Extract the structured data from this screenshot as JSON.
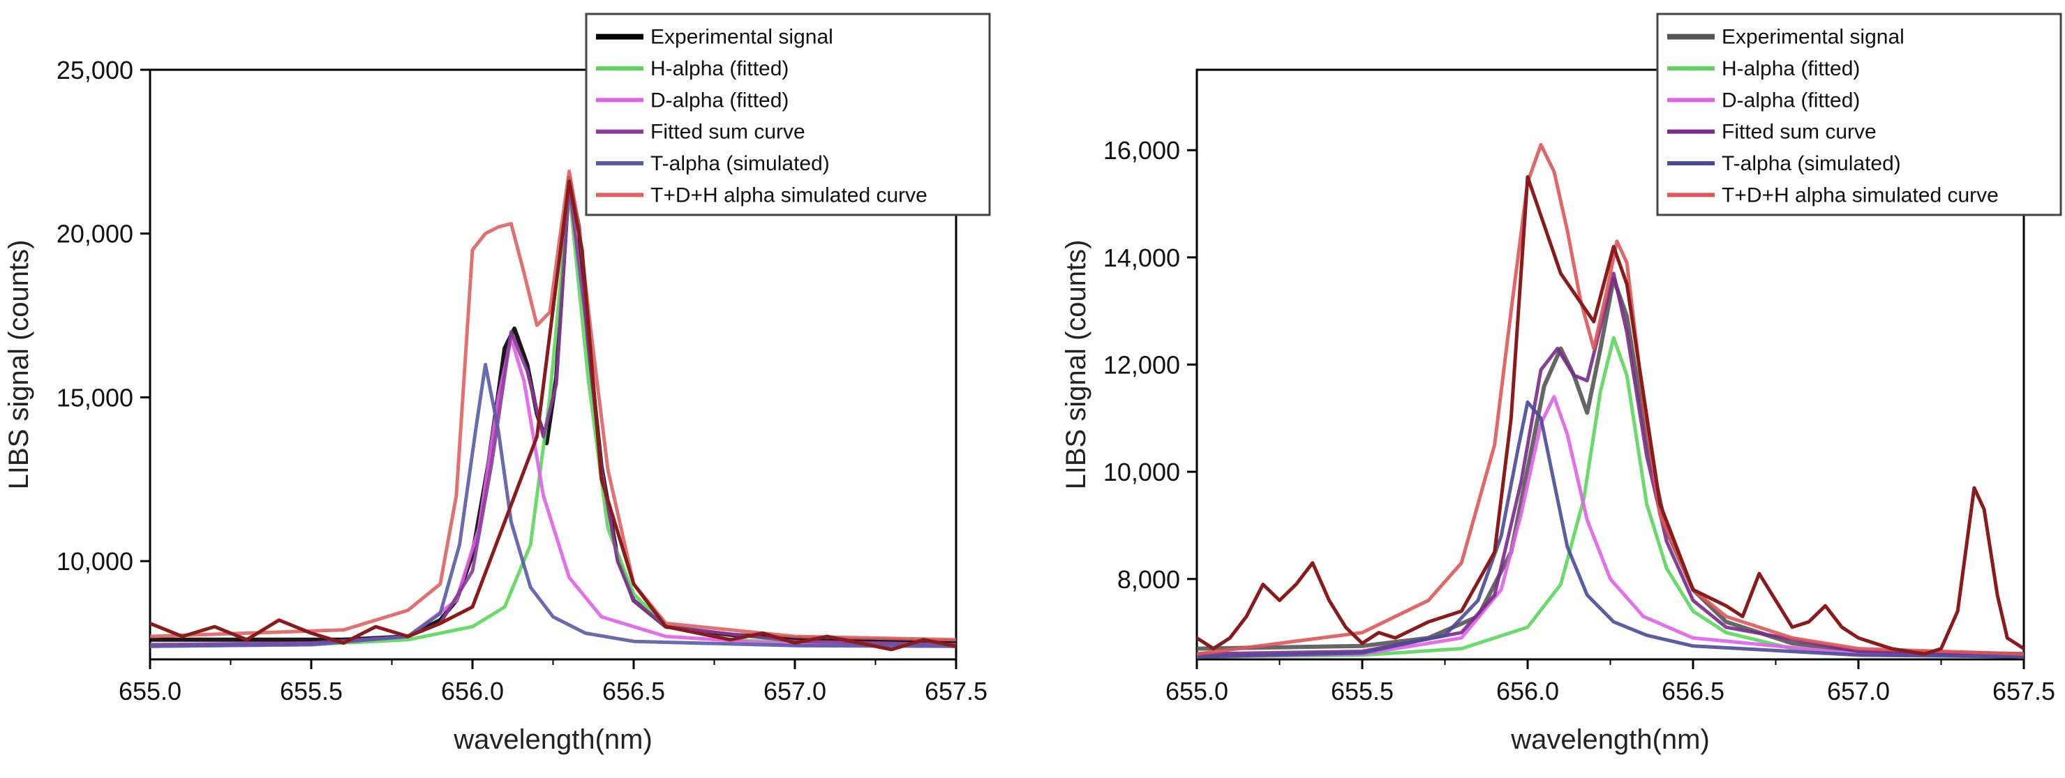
{
  "chart_data": [
    {
      "type": "line",
      "xlabel": "wavelength(nm)",
      "ylabel": "LIBS signal (counts)",
      "xlim": [
        655.0,
        657.5
      ],
      "ylim": [
        7000,
        25000
      ],
      "xticks": [
        655.0,
        655.5,
        656.0,
        656.5,
        657.0,
        657.5
      ],
      "xtick_labels": [
        "655.0",
        "655.5",
        "656.0",
        "656.5",
        "657.0",
        "657.5"
      ],
      "yticks": [
        10000,
        15000,
        20000,
        25000
      ],
      "ytick_labels": [
        "10,000",
        "15,000",
        "20,000",
        "25,000"
      ],
      "grid": false,
      "legend_position": "top-right",
      "series": [
        {
          "name": "Experimental signal",
          "color": "#000000",
          "x": [
            655.0,
            655.2,
            655.4,
            655.6,
            655.8,
            655.9,
            655.95,
            656.0,
            656.05,
            656.1,
            656.13,
            656.17,
            656.2,
            656.23,
            656.26,
            656.3,
            656.33,
            656.36,
            656.4,
            656.45,
            656.5,
            656.6,
            656.8,
            657.0,
            657.2,
            657.5
          ],
          "y": [
            7600,
            7600,
            7600,
            7600,
            7700,
            8200,
            8800,
            10200,
            13000,
            16500,
            17100,
            16000,
            14500,
            13600,
            15600,
            21700,
            20200,
            16600,
            12900,
            10100,
            8800,
            8000,
            7750,
            7650,
            7600,
            7550
          ]
        },
        {
          "name": "H-alpha (fitted)",
          "color": "#5ad65a",
          "x": [
            655.0,
            655.5,
            655.8,
            656.0,
            656.1,
            656.18,
            656.24,
            656.3,
            656.36,
            656.42,
            656.5,
            656.6,
            656.8,
            657.0,
            657.5
          ],
          "y": [
            7400,
            7450,
            7600,
            8000,
            8600,
            10500,
            15000,
            21300,
            15500,
            11000,
            9000,
            8000,
            7600,
            7500,
            7450
          ]
        },
        {
          "name": "D-alpha (fitted)",
          "color": "#e060e8",
          "x": [
            655.0,
            655.5,
            655.8,
            655.95,
            656.02,
            656.08,
            656.12,
            656.16,
            656.22,
            656.3,
            656.4,
            656.6,
            657.0,
            657.5
          ],
          "y": [
            7400,
            7450,
            7700,
            8800,
            11000,
            15000,
            16800,
            15500,
            12000,
            9500,
            8300,
            7700,
            7450,
            7400
          ]
        },
        {
          "name": "Fitted sum curve",
          "color": "#8a3a9a",
          "x": [
            655.0,
            655.5,
            655.8,
            655.9,
            656.0,
            656.06,
            656.12,
            656.17,
            656.22,
            656.26,
            656.3,
            656.35,
            656.4,
            656.45,
            656.5,
            656.6,
            657.0,
            657.5
          ],
          "y": [
            7450,
            7500,
            7700,
            8100,
            9700,
            13000,
            17000,
            15800,
            13800,
            15400,
            21500,
            17500,
            12800,
            10000,
            8800,
            8000,
            7550,
            7450
          ]
        },
        {
          "name": "T-alpha (simulated)",
          "color": "#5a5aa8",
          "x": [
            655.0,
            655.5,
            655.8,
            655.9,
            655.96,
            656.01,
            656.04,
            656.08,
            656.12,
            656.18,
            656.25,
            656.35,
            656.5,
            657.0,
            657.5
          ],
          "y": [
            7400,
            7450,
            7700,
            8400,
            10500,
            14000,
            16000,
            14000,
            11200,
            9200,
            8300,
            7800,
            7550,
            7420,
            7400
          ]
        },
        {
          "name": "T+D+H alpha simulated curve",
          "color": "#e06060",
          "x": [
            655.0,
            655.3,
            655.6,
            655.8,
            655.9,
            655.95,
            656.0,
            656.04,
            656.08,
            656.12,
            656.16,
            656.2,
            656.24,
            656.27,
            656.3,
            656.33,
            656.37,
            656.42,
            656.5,
            656.6,
            657.0,
            657.5
          ],
          "y": [
            7700,
            7800,
            7900,
            8500,
            9300,
            12000,
            19500,
            20000,
            20200,
            20300,
            18800,
            17200,
            17600,
            19800,
            21900,
            20200,
            16800,
            12800,
            9300,
            8100,
            7700,
            7600
          ]
        },
        {
          "name": "",
          "color": "#8b1a1a",
          "x": [
            655.0,
            655.1,
            655.2,
            655.3,
            655.4,
            655.5,
            655.6,
            655.7,
            655.8,
            655.9,
            656.0,
            656.2,
            656.3,
            656.34,
            656.4,
            656.5,
            656.6,
            656.7,
            656.8,
            656.9,
            657.0,
            657.1,
            657.2,
            657.3,
            657.4,
            657.5
          ],
          "y": [
            8100,
            7700,
            8000,
            7600,
            8200,
            7800,
            7500,
            8000,
            7700,
            8100,
            8600,
            13800,
            21600,
            19500,
            12500,
            9300,
            8000,
            7800,
            7600,
            7800,
            7500,
            7700,
            7500,
            7300,
            7600,
            7400
          ]
        }
      ]
    },
    {
      "type": "line",
      "xlabel": "wavelength(nm)",
      "ylabel": "LIBS signal (counts)",
      "xlim": [
        655.0,
        657.5
      ],
      "ylim": [
        6500,
        17500
      ],
      "xticks": [
        655.0,
        655.5,
        656.0,
        656.5,
        657.0,
        657.5
      ],
      "xtick_labels": [
        "655.0",
        "655.5",
        "656.0",
        "656.5",
        "657.0",
        "657.5"
      ],
      "yticks": [
        8000,
        10000,
        12000,
        14000,
        16000
      ],
      "ytick_labels": [
        "8,000",
        "10,000",
        "12,000",
        "14,000",
        "16,000"
      ],
      "grid": false,
      "legend_position": "top-right",
      "series": [
        {
          "name": "Experimental signal",
          "color": "#555555",
          "x": [
            655.0,
            655.5,
            655.7,
            655.85,
            655.95,
            656.05,
            656.1,
            656.14,
            656.18,
            656.22,
            656.26,
            656.3,
            656.36,
            656.42,
            656.5,
            656.6,
            656.8,
            657.0,
            657.5
          ],
          "y": [
            6700,
            6750,
            6900,
            7300,
            8500,
            11600,
            12300,
            11800,
            11100,
            12300,
            13600,
            12900,
            10600,
            8900,
            7800,
            7200,
            6800,
            6650,
            6600
          ]
        },
        {
          "name": "H-alpha (fitted)",
          "color": "#5ad65a",
          "x": [
            655.0,
            655.5,
            655.8,
            656.0,
            656.1,
            656.17,
            656.22,
            656.26,
            656.3,
            656.36,
            656.42,
            656.5,
            656.6,
            656.8,
            657.0,
            657.5
          ],
          "y": [
            6550,
            6580,
            6700,
            7100,
            7900,
            9500,
            11500,
            12500,
            11800,
            9400,
            8200,
            7400,
            7000,
            6700,
            6600,
            6550
          ]
        },
        {
          "name": "D-alpha (fitted)",
          "color": "#e060e8",
          "x": [
            655.0,
            655.5,
            655.8,
            655.92,
            655.98,
            656.04,
            656.08,
            656.12,
            656.18,
            656.25,
            656.35,
            656.5,
            657.0,
            657.5
          ],
          "y": [
            6550,
            6600,
            6900,
            7800,
            9200,
            10900,
            11400,
            10700,
            9100,
            8000,
            7300,
            6900,
            6600,
            6550
          ]
        },
        {
          "name": "Fitted sum curve",
          "color": "#7a2a8a",
          "x": [
            655.0,
            655.5,
            655.8,
            655.9,
            655.98,
            656.04,
            656.09,
            656.14,
            656.18,
            656.22,
            656.26,
            656.3,
            656.36,
            656.42,
            656.5,
            656.6,
            657.0,
            657.5
          ],
          "y": [
            6600,
            6650,
            7000,
            7700,
            9800,
            11900,
            12300,
            11800,
            11700,
            12700,
            13700,
            12600,
            10300,
            8700,
            7600,
            7100,
            6650,
            6600
          ]
        },
        {
          "name": "T-alpha (simulated)",
          "color": "#4a4a9a",
          "x": [
            655.0,
            655.5,
            655.75,
            655.85,
            655.92,
            655.97,
            656.0,
            656.04,
            656.08,
            656.12,
            656.18,
            656.26,
            656.36,
            656.5,
            657.0,
            657.5
          ],
          "y": [
            6550,
            6620,
            6950,
            7600,
            8800,
            10400,
            11300,
            11000,
            9800,
            8600,
            7700,
            7200,
            6950,
            6750,
            6580,
            6550
          ]
        },
        {
          "name": "T+D+H alpha simulated curve",
          "color": "#e05555",
          "x": [
            655.0,
            655.5,
            655.7,
            655.8,
            655.9,
            655.95,
            656.0,
            656.04,
            656.08,
            656.12,
            656.16,
            656.2,
            656.24,
            656.27,
            656.3,
            656.35,
            656.4,
            656.5,
            656.6,
            656.8,
            657.0,
            657.5
          ],
          "y": [
            6600,
            7000,
            7600,
            8300,
            10500,
            13000,
            15400,
            16100,
            15600,
            14500,
            13200,
            12300,
            13400,
            14300,
            13900,
            11300,
            9200,
            7800,
            7300,
            6900,
            6700,
            6600
          ]
        },
        {
          "name": "",
          "color": "#8b1a1a",
          "x": [
            655.0,
            655.05,
            655.1,
            655.15,
            655.2,
            655.25,
            655.3,
            655.35,
            655.4,
            655.45,
            655.5,
            655.55,
            655.6,
            655.7,
            655.8,
            655.9,
            655.95,
            656.0,
            656.1,
            656.2,
            656.26,
            656.3,
            656.4,
            656.5,
            656.6,
            656.65,
            656.7,
            656.75,
            656.8,
            656.85,
            656.9,
            656.95,
            657.0,
            657.1,
            657.2,
            657.25,
            657.3,
            657.35,
            657.38,
            657.42,
            657.45,
            657.5
          ],
          "y": [
            6900,
            6700,
            6900,
            7300,
            7900,
            7600,
            7900,
            8300,
            7600,
            7100,
            6800,
            7000,
            6900,
            7200,
            7400,
            8500,
            11000,
            15500,
            13700,
            12800,
            14200,
            13500,
            9400,
            7800,
            7500,
            7300,
            8100,
            7600,
            7100,
            7200,
            7500,
            7100,
            6900,
            6700,
            6600,
            6700,
            7400,
            9700,
            9300,
            7700,
            6900,
            6700
          ]
        }
      ]
    }
  ]
}
